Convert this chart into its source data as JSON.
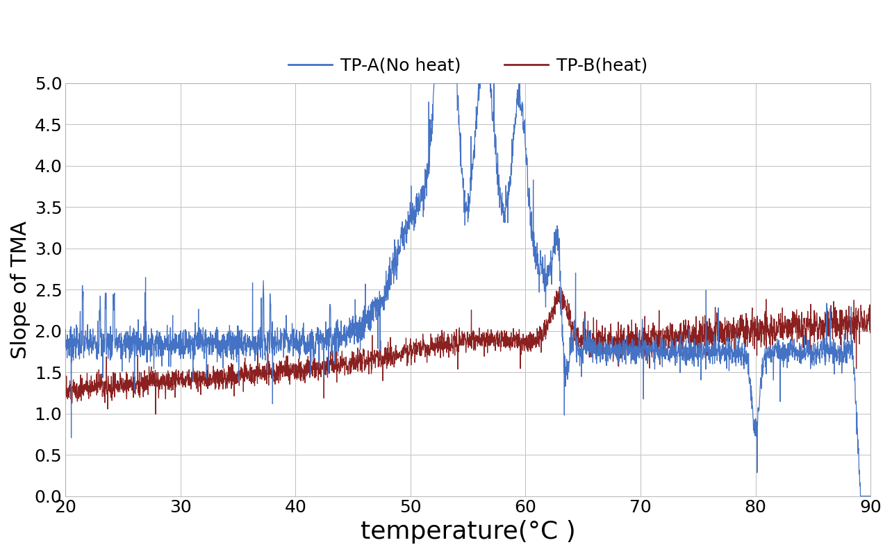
{
  "title": "",
  "xlabel": "temperature(°C )",
  "ylabel": "Slope of TMA",
  "xlim": [
    20,
    90
  ],
  "ylim": [
    0.0,
    5.0
  ],
  "xticks": [
    20,
    30,
    40,
    50,
    60,
    70,
    80,
    90
  ],
  "yticks": [
    0.0,
    0.5,
    1.0,
    1.5,
    2.0,
    2.5,
    3.0,
    3.5,
    4.0,
    4.5,
    5.0
  ],
  "legend_labels": [
    "TP-A(No heat)",
    "TP-B(heat)"
  ],
  "color_A": "#4472C4",
  "color_B": "#8B2020",
  "line_width": 0.9,
  "xlabel_fontsize": 26,
  "ylabel_fontsize": 22,
  "tick_fontsize": 18,
  "legend_fontsize": 18,
  "background_color": "#ffffff",
  "grid_color": "#c0c0c0"
}
